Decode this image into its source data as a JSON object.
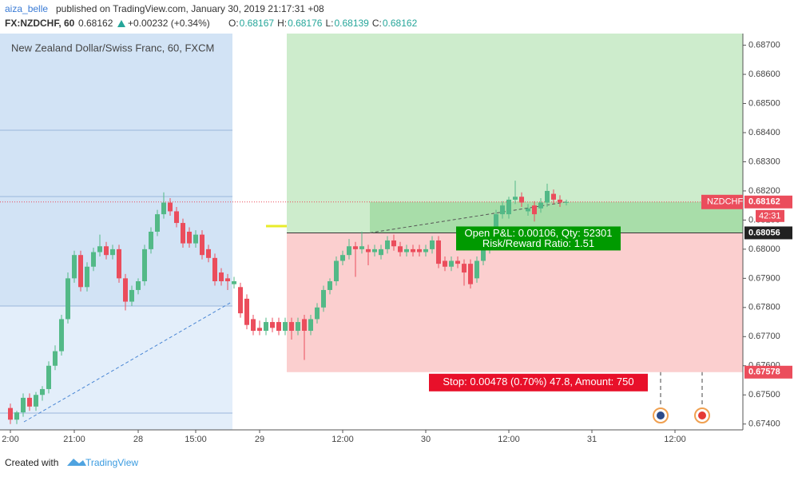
{
  "header": {
    "author": "aiza_belle",
    "published": "published on TradingView.com, January 30, 2019 21:17:31 +08",
    "symbol": "FX:NZDCHF, 60",
    "price": "0.68162",
    "change": "+0.00232 (+0.34%)",
    "ohlc": [
      {
        "key": "O:",
        "value": "0.68167"
      },
      {
        "key": "H:",
        "value": "0.68176"
      },
      {
        "key": "L:",
        "value": "0.68139"
      },
      {
        "key": "C:",
        "value": "0.68162"
      }
    ]
  },
  "chart_data": {
    "type": "candlestick",
    "title": "New Zealand Dollar/Swiss Franc, 60, FXCM",
    "up_color": "#53b987",
    "down_color": "#eb4d5c",
    "ylim": [
      0.6738,
      0.6874
    ],
    "yticks": [
      {
        "value": 0.674,
        "label": "0.67400"
      },
      {
        "value": 0.675,
        "label": "0.67500"
      },
      {
        "value": 0.676,
        "label": "0.67600"
      },
      {
        "value": 0.677,
        "label": "0.67700"
      },
      {
        "value": 0.678,
        "label": "0.67800"
      },
      {
        "value": 0.679,
        "label": "0.67900"
      },
      {
        "value": 0.68,
        "label": "0.68000"
      },
      {
        "value": 0.681,
        "label": "0.68100"
      },
      {
        "value": 0.682,
        "label": "0.68200"
      },
      {
        "value": 0.683,
        "label": "0.68300"
      },
      {
        "value": 0.684,
        "label": "0.68400"
      },
      {
        "value": 0.685,
        "label": "0.68500"
      },
      {
        "value": 0.686,
        "label": "0.68600"
      },
      {
        "value": 0.687,
        "label": "0.68700"
      }
    ],
    "categories": [
      "2:00",
      null,
      null,
      null,
      null,
      null,
      null,
      null,
      null,
      null,
      "21:00",
      null,
      null,
      null,
      null,
      null,
      null,
      null,
      null,
      null,
      "28",
      null,
      null,
      null,
      null,
      null,
      null,
      null,
      null,
      "15:00",
      null,
      null,
      null,
      null,
      null,
      null,
      null,
      null,
      null,
      "29",
      null,
      null,
      null,
      null,
      null,
      null,
      null,
      null,
      null,
      null,
      null,
      null,
      "12:00",
      null,
      null,
      null,
      null,
      null,
      null,
      null,
      null,
      null,
      null,
      null,
      null,
      "30",
      null,
      null,
      null,
      null,
      null,
      null,
      null,
      null,
      null,
      null,
      null,
      null,
      "12:00",
      null,
      null,
      null,
      null,
      null,
      null,
      null,
      null,
      null,
      null,
      null,
      null,
      "31",
      null,
      null,
      null,
      null,
      null,
      null,
      null,
      null,
      null,
      null,
      null,
      null,
      "12:00",
      null,
      null,
      null,
      null,
      null,
      null,
      null,
      null,
      null,
      null
    ],
    "ohlc": [
      [
        0.67455,
        0.6747,
        0.674,
        0.67415
      ],
      [
        0.67415,
        0.67445,
        0.674,
        0.6744
      ],
      [
        0.6744,
        0.67505,
        0.67425,
        0.6749
      ],
      [
        0.6749,
        0.67505,
        0.67445,
        0.6746
      ],
      [
        0.6746,
        0.6751,
        0.67445,
        0.675
      ],
      [
        0.675,
        0.6753,
        0.6748,
        0.6752
      ],
      [
        0.6752,
        0.67615,
        0.67505,
        0.676
      ],
      [
        0.676,
        0.6767,
        0.67585,
        0.6765
      ],
      [
        0.6765,
        0.67775,
        0.67635,
        0.6776
      ],
      [
        0.6776,
        0.6792,
        0.67745,
        0.679
      ],
      [
        0.679,
        0.67995,
        0.67885,
        0.6798
      ],
      [
        0.6798,
        0.67995,
        0.67855,
        0.6787
      ],
      [
        0.6787,
        0.67955,
        0.67855,
        0.6794
      ],
      [
        0.6794,
        0.68005,
        0.67925,
        0.6799
      ],
      [
        0.6799,
        0.6805,
        0.67975,
        0.6801
      ],
      [
        0.6801,
        0.68025,
        0.67965,
        0.6798
      ],
      [
        0.6798,
        0.68015,
        0.67965,
        0.68
      ],
      [
        0.68,
        0.68015,
        0.67885,
        0.679
      ],
      [
        0.679,
        0.67915,
        0.6779,
        0.6782
      ],
      [
        0.6782,
        0.67875,
        0.67805,
        0.6786
      ],
      [
        0.6786,
        0.679,
        0.67845,
        0.6789
      ],
      [
        0.6789,
        0.68015,
        0.67875,
        0.68
      ],
      [
        0.68,
        0.68075,
        0.67985,
        0.6806
      ],
      [
        0.6806,
        0.68135,
        0.68045,
        0.6812
      ],
      [
        0.6812,
        0.68195,
        0.68105,
        0.6816
      ],
      [
        0.6816,
        0.68175,
        0.68115,
        0.6813
      ],
      [
        0.6813,
        0.68145,
        0.68075,
        0.6809
      ],
      [
        0.6809,
        0.68105,
        0.68005,
        0.6802
      ],
      [
        0.6806,
        0.68075,
        0.68005,
        0.6802
      ],
      [
        0.6802,
        0.68065,
        0.68005,
        0.6805
      ],
      [
        0.6805,
        0.68065,
        0.67965,
        0.6798
      ],
      [
        0.68,
        0.68015,
        0.67955,
        0.6797
      ],
      [
        0.6797,
        0.67985,
        0.67875,
        0.6789
      ],
      [
        0.6792,
        0.67935,
        0.67875,
        0.6789
      ],
      [
        0.679,
        0.67915,
        0.6786,
        0.6789
      ],
      [
        0.6788,
        0.67905,
        0.67865,
        0.6789
      ],
      [
        0.6787,
        0.67885,
        0.67765,
        0.6778
      ],
      [
        0.6783,
        0.67845,
        0.67725,
        0.6774
      ],
      [
        0.6776,
        0.67775,
        0.67705,
        0.6772
      ],
      [
        0.6773,
        0.67755,
        0.67705,
        0.6772
      ],
      [
        0.6772,
        0.67765,
        0.67705,
        0.6775
      ],
      [
        0.6775,
        0.67765,
        0.67715,
        0.6773
      ],
      [
        0.6775,
        0.67765,
        0.67705,
        0.6772
      ],
      [
        0.6772,
        0.67765,
        0.67705,
        0.6775
      ],
      [
        0.6775,
        0.67765,
        0.6769,
        0.6772
      ],
      [
        0.6772,
        0.67765,
        0.67705,
        0.6775
      ],
      [
        0.6776,
        0.67775,
        0.6762,
        0.6772
      ],
      [
        0.6772,
        0.67775,
        0.67705,
        0.6776
      ],
      [
        0.6776,
        0.67815,
        0.67745,
        0.678
      ],
      [
        0.678,
        0.67875,
        0.67785,
        0.6786
      ],
      [
        0.6786,
        0.679,
        0.67845,
        0.6789
      ],
      [
        0.6789,
        0.67975,
        0.67875,
        0.6796
      ],
      [
        0.6796,
        0.67995,
        0.67945,
        0.6798
      ],
      [
        0.6798,
        0.68035,
        0.67965,
        0.6801
      ],
      [
        0.6801,
        0.68025,
        0.67905,
        0.68
      ],
      [
        0.68,
        0.6806,
        0.67985,
        0.6801
      ],
      [
        0.68,
        0.68015,
        0.67945,
        0.6799
      ],
      [
        0.6799,
        0.68015,
        0.67975,
        0.68
      ],
      [
        0.6798,
        0.68015,
        0.67965,
        0.68
      ],
      [
        0.68,
        0.68045,
        0.67985,
        0.6803
      ],
      [
        0.6803,
        0.6805,
        0.67995,
        0.6801
      ],
      [
        0.6801,
        0.68025,
        0.67975,
        0.6799
      ],
      [
        0.6799,
        0.68015,
        0.67975,
        0.68
      ],
      [
        0.68,
        0.68015,
        0.67975,
        0.6799
      ],
      [
        0.68,
        0.68015,
        0.67975,
        0.6799
      ],
      [
        0.6799,
        0.68015,
        0.67975,
        0.68
      ],
      [
        0.68,
        0.68045,
        0.67985,
        0.6803
      ],
      [
        0.6803,
        0.68045,
        0.67935,
        0.6795
      ],
      [
        0.6796,
        0.67975,
        0.67925,
        0.6794
      ],
      [
        0.6794,
        0.67975,
        0.67925,
        0.6796
      ],
      [
        0.6796,
        0.67975,
        0.67935,
        0.6795
      ],
      [
        0.6795,
        0.67965,
        0.67875,
        0.6792
      ],
      [
        0.6795,
        0.67965,
        0.67865,
        0.6788
      ],
      [
        0.679,
        0.67975,
        0.67885,
        0.6796
      ],
      [
        0.6796,
        0.68015,
        0.67945,
        0.68
      ],
      [
        0.68,
        0.68075,
        0.67985,
        0.6806
      ],
      [
        0.6806,
        0.68135,
        0.68045,
        0.6812
      ],
      [
        0.6812,
        0.68165,
        0.68105,
        0.6815
      ],
      [
        0.6812,
        0.6818,
        0.68105,
        0.6817
      ],
      [
        0.6817,
        0.68235,
        0.68155,
        0.6818
      ],
      [
        0.6818,
        0.68195,
        0.68145,
        0.6816
      ],
      [
        0.6813,
        0.68155,
        0.68115,
        0.6814
      ],
      [
        0.6815,
        0.68165,
        0.68095,
        0.6812
      ],
      [
        0.6814,
        0.68175,
        0.68125,
        0.6816
      ],
      [
        0.6816,
        0.68225,
        0.68145,
        0.682
      ],
      [
        0.6819,
        0.68205,
        0.68155,
        0.6817
      ],
      [
        0.6817,
        0.68185,
        0.68145,
        0.6816
      ],
      [
        0.6816,
        0.6817,
        0.6815,
        0.68162
      ],
      null,
      null,
      null,
      null,
      null,
      null,
      null,
      null,
      null,
      null,
      null,
      null,
      null,
      null,
      null,
      null,
      null,
      null,
      null,
      null,
      null,
      null,
      null,
      null,
      null,
      null,
      null
    ],
    "last_price": {
      "value": 0.68162,
      "label": "0.68162"
    },
    "symbol_tag": "NZDCHF",
    "countdown": "42:31",
    "position": {
      "entry": {
        "value": 0.68056,
        "label": "0.68056"
      },
      "stop": {
        "value": 0.67578,
        "label": "0.67578"
      },
      "pnl_text": "Open P&L: 0.00106, Qty: 52301",
      "ratio_text": "Risk/Reward Ratio: 1.51",
      "stop_text": "Stop: 0.00478 (0.70%) 47.8, Amount: 750"
    }
  },
  "footer": {
    "created": "Created with",
    "brand": "TradingView"
  }
}
